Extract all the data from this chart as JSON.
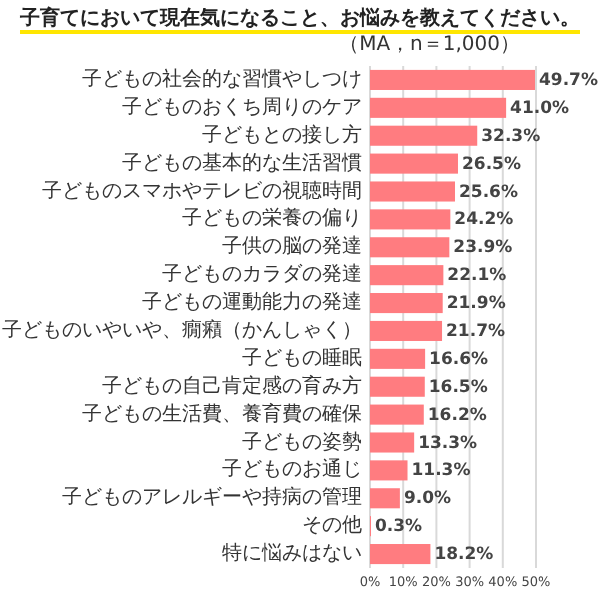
{
  "chart_data": {
    "type": "bar",
    "orientation": "horizontal",
    "title": "子育てにおいて現在気になること、お悩みを教えてください。",
    "subtitle": "（MA，n＝1,000）",
    "categories": [
      "子どもの社会的な習慣やしつけ",
      "子どものおくち周りのケア",
      "子どもとの接し方",
      "子どもの基本的な生活習慣",
      "子どものスマホやテレビの視聴時間",
      "子どもの栄養の偏り",
      "子供の脳の発達",
      "子どものカラダの発達",
      "子どもの運動能力の発達",
      "子どものいやいや、癇癪（かんしゃく）",
      "子どもの睡眠",
      "子どもの自己肯定感の育み方",
      "子どもの生活費、養育費の確保",
      "子どもの姿勢",
      "子どものお通じ",
      "子どものアレルギーや持病の管理",
      "その他",
      "特に悩みはない"
    ],
    "values": [
      49.7,
      41.0,
      32.3,
      26.5,
      25.6,
      24.2,
      23.9,
      22.1,
      21.9,
      21.7,
      16.6,
      16.5,
      16.2,
      13.3,
      11.3,
      9.0,
      0.3,
      18.2
    ],
    "value_labels": [
      "49.7%",
      "41.0%",
      "32.3%",
      "26.5%",
      "25.6%",
      "24.2%",
      "23.9%",
      "22.1%",
      "21.9%",
      "21.7%",
      "16.6%",
      "16.5%",
      "16.2%",
      "13.3%",
      "11.3%",
      "9.0%",
      "0.3%",
      "18.2%"
    ],
    "color": "#ff7c80",
    "xlim": [
      0,
      50
    ],
    "xticks": [
      {
        "value": 0,
        "label": "0%"
      },
      {
        "value": 10,
        "label": "10%"
      },
      {
        "value": 20,
        "label": "20%"
      },
      {
        "value": 30,
        "label": "30%"
      },
      {
        "value": 40,
        "label": "40%"
      },
      {
        "value": 50,
        "label": "50%"
      }
    ],
    "grid": "x"
  }
}
